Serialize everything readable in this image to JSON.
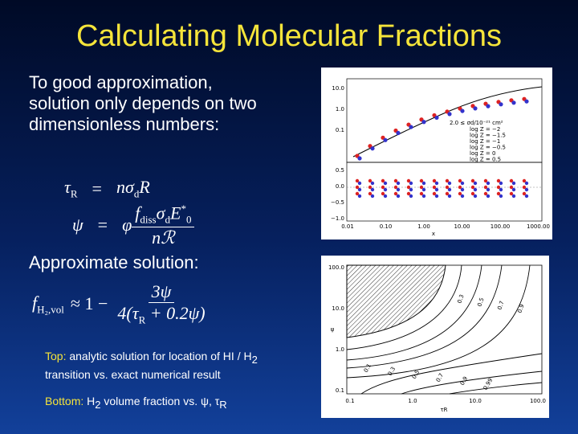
{
  "title": "Calculating Molecular Fractions",
  "intro": "To good approximation, solution only depends on two dimensionless numbers:",
  "equation_1": {
    "lhs": [
      {
        "text": "τ",
        "sub": "R"
      }
    ],
    "op": "=",
    "rhs": [
      {
        "text": "nσ",
        "sub": "d"
      },
      {
        "text": "R"
      }
    ]
  },
  "equation_2": {
    "lhs": [
      {
        "text": "ψ"
      }
    ],
    "op": "=",
    "pre": [
      {
        "text": "φ"
      }
    ],
    "numerator": [
      {
        "text": "f",
        "sub": "diss"
      },
      {
        "text": "σ",
        "sub": "d"
      },
      {
        "text": "E",
        "sup": "*",
        "sub": "0"
      }
    ],
    "denominator": [
      {
        "text": "nℛ"
      }
    ]
  },
  "approx_heading": "Approximate solution:",
  "approx_equation": {
    "lhs": [
      {
        "text": "f",
        "sub": "H₂,vol"
      }
    ],
    "op": "≈ 1 −",
    "numerator": [
      {
        "text": "3ψ"
      }
    ],
    "denominator": [
      {
        "text": "4(τ",
        "sub": "R"
      },
      {
        "text": " + 0.2ψ)"
      }
    ]
  },
  "caption_top": {
    "label": "Top:",
    "text": [
      {
        "text": " analytic solution for location of HI / H",
        "sub": "2"
      },
      {
        "text": " transition vs. exact numerical result"
      }
    ]
  },
  "caption_bottom": {
    "label": "Bottom:",
    "text": [
      {
        "text": " H",
        "sub": "2"
      },
      {
        "text": " volume fraction vs. ψ, τ",
        "sub": "R"
      }
    ]
  },
  "top_figure": {
    "upper_yticks": [
      "10.0",
      "1.0",
      "0.1"
    ],
    "lower_yticks": [
      "0.5",
      "0.0",
      "−0.5",
      "−1.0"
    ],
    "xticks": [
      "0.01",
      "0.10",
      "1.00",
      "10.00",
      "100.00",
      "1000.00"
    ],
    "xlabel": "x",
    "legend_header": "2.0 ≤ σd/10⁻²¹ cm²",
    "legend": [
      "log Z = −2",
      "log Z = −1.5",
      "log Z = −1",
      "log Z = −0.5",
      "log Z = 0",
      "log Z = 0.5"
    ]
  },
  "bottom_figure": {
    "yticks": [
      "100.0",
      "10.0",
      "1.0",
      "0.1"
    ],
    "xticks": [
      "0.1",
      "1.0",
      "10.0",
      "100.0"
    ],
    "ylabel": "ψ",
    "xlabel": "τR",
    "upper_contour_labels": [
      "0.3",
      "0.5",
      "0.7",
      "0.9"
    ],
    "lower_contour_labels": [
      "0.1",
      "0.3",
      "0.5",
      "0.7",
      "0.9",
      "0.99"
    ]
  }
}
